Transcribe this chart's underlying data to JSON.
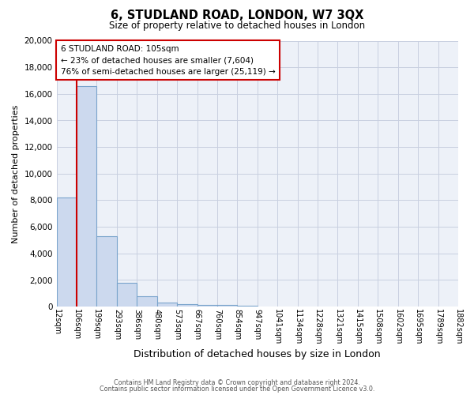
{
  "title": "6, STUDLAND ROAD, LONDON, W7 3QX",
  "subtitle": "Size of property relative to detached houses in London",
  "xlabel": "Distribution of detached houses by size in London",
  "ylabel": "Number of detached properties",
  "bin_edges": [
    12,
    106,
    199,
    293,
    386,
    480,
    573,
    667,
    760,
    854,
    947,
    1041,
    1134,
    1228,
    1321,
    1415,
    1508,
    1602,
    1695,
    1789,
    1882
  ],
  "bar_heights": [
    8200,
    16600,
    5300,
    1800,
    800,
    300,
    200,
    150,
    100,
    80,
    0,
    0,
    0,
    0,
    0,
    0,
    0,
    0,
    0,
    0
  ],
  "bar_color": "#ccd9ee",
  "bar_edge_color": "#7aa4cc",
  "property_line_x": 106,
  "property_line_color": "#cc0000",
  "ylim": [
    0,
    20000
  ],
  "yticks": [
    0,
    2000,
    4000,
    6000,
    8000,
    10000,
    12000,
    14000,
    16000,
    18000,
    20000
  ],
  "annotation_line1": "6 STUDLAND ROAD: 105sqm",
  "annotation_line2": "← 23% of detached houses are smaller (7,604)",
  "annotation_line3": "76% of semi-detached houses are larger (25,119) →",
  "annotation_box_color": "#ffffff",
  "annotation_box_edge": "#cc0000",
  "grid_color": "#c8cfe0",
  "bg_color": "#edf1f8",
  "footer1": "Contains HM Land Registry data © Crown copyright and database right 2024.",
  "footer2": "Contains public sector information licensed under the Open Government Licence v3.0."
}
